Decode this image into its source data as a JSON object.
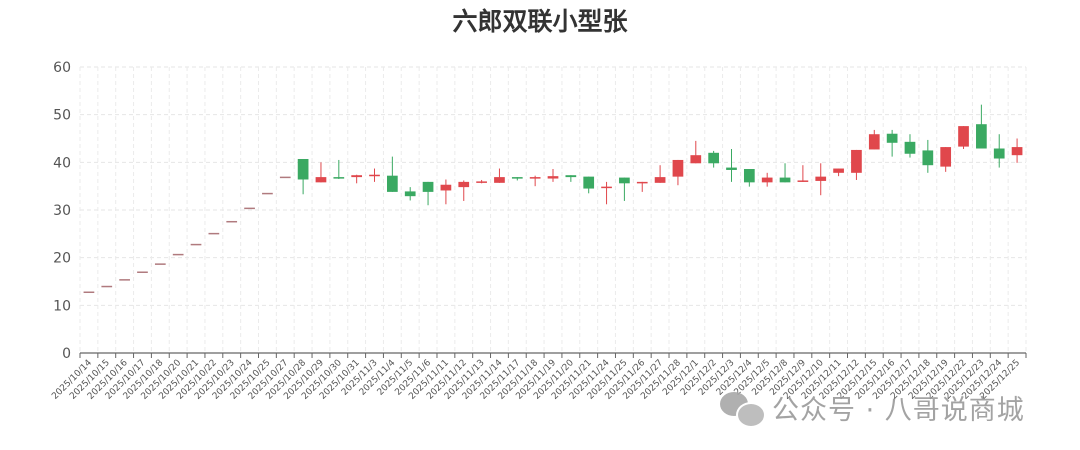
{
  "chart_data": {
    "type": "candlestick",
    "title": "六郎双联小型张",
    "ylim": [
      0,
      60
    ],
    "yticks": [
      0,
      10,
      20,
      30,
      40,
      50,
      60
    ],
    "grid": true,
    "colors": {
      "up": "#e0474c",
      "down": "#3aa962",
      "flat": "#b07a7e"
    },
    "ohlc_order": [
      "open",
      "close",
      "low",
      "high"
    ],
    "categories": [
      "2025/10/14",
      "2025/10/15",
      "2025/10/16",
      "2025/10/17",
      "2025/10/18",
      "2025/10/20",
      "2025/10/21",
      "2025/10/22",
      "2025/10/23",
      "2025/10/24",
      "2025/10/25",
      "2025/10/27",
      "2025/10/28",
      "2025/10/29",
      "2025/10/30",
      "2025/10/31",
      "2025/11/3",
      "2025/11/4",
      "2025/11/5",
      "2025/11/6",
      "2025/11/11",
      "2025/11/12",
      "2025/11/13",
      "2025/11/14",
      "2025/11/17",
      "2025/11/18",
      "2025/11/19",
      "2025/11/20",
      "2025/11/21",
      "2025/11/24",
      "2025/11/25",
      "2025/11/26",
      "2025/11/27",
      "2025/11/28",
      "2025/12/1",
      "2025/12/2",
      "2025/12/3",
      "2025/12/4",
      "2025/12/5",
      "2025/12/8",
      "2025/12/9",
      "2025/12/10",
      "2025/12/11",
      "2025/12/12",
      "2025/12/15",
      "2025/12/16",
      "2025/12/17",
      "2025/12/18",
      "2025/12/19",
      "2025/12/22",
      "2025/12/23",
      "2025/12/24",
      "2025/12/25"
    ],
    "values": [
      [
        12.9,
        12.9,
        12.9,
        12.9
      ],
      [
        14.1,
        14.1,
        14.1,
        14.1
      ],
      [
        15.5,
        15.5,
        15.5,
        15.5
      ],
      [
        17.1,
        17.1,
        17.1,
        17.1
      ],
      [
        18.8,
        18.8,
        18.8,
        18.8
      ],
      [
        20.8,
        20.8,
        20.8,
        20.8
      ],
      [
        22.9,
        22.9,
        22.9,
        22.9
      ],
      [
        25.2,
        25.2,
        25.2,
        25.2
      ],
      [
        27.7,
        27.7,
        27.7,
        27.7
      ],
      [
        30.5,
        30.5,
        30.5,
        30.5
      ],
      [
        33.6,
        33.6,
        33.6,
        33.6
      ],
      [
        37.0,
        37.0,
        37.0,
        37.0
      ],
      [
        40.7,
        36.4,
        33.3,
        40.7
      ],
      [
        35.8,
        36.9,
        35.8,
        40.0
      ],
      [
        36.9,
        36.7,
        36.5,
        40.5
      ],
      [
        36.9,
        37.3,
        35.6,
        37.4
      ],
      [
        37.2,
        37.4,
        35.9,
        38.7
      ],
      [
        37.2,
        33.8,
        33.8,
        41.2
      ],
      [
        33.9,
        32.9,
        32.0,
        34.8
      ],
      [
        35.9,
        33.8,
        31.0,
        35.9
      ],
      [
        34.1,
        35.3,
        31.2,
        36.4
      ],
      [
        34.8,
        35.9,
        31.9,
        36.2
      ],
      [
        35.9,
        36.0,
        35.6,
        36.3
      ],
      [
        35.7,
        36.9,
        35.7,
        38.7
      ],
      [
        36.9,
        36.7,
        36.2,
        36.9
      ],
      [
        36.8,
        36.9,
        35.0,
        37.2
      ],
      [
        36.6,
        37.1,
        35.9,
        38.6
      ],
      [
        37.3,
        36.9,
        35.9,
        37.3
      ],
      [
        37.0,
        34.5,
        33.5,
        37.0
      ],
      [
        34.8,
        34.9,
        31.2,
        35.9
      ],
      [
        36.8,
        35.6,
        31.9,
        36.8
      ],
      [
        35.8,
        35.9,
        33.8,
        35.9
      ],
      [
        35.7,
        36.9,
        35.7,
        39.4
      ],
      [
        37.0,
        40.5,
        35.2,
        40.5
      ],
      [
        39.8,
        41.5,
        39.8,
        44.5
      ],
      [
        42.0,
        39.8,
        38.9,
        42.4
      ],
      [
        38.9,
        38.4,
        35.9,
        42.8
      ],
      [
        38.6,
        35.8,
        34.9,
        38.6
      ],
      [
        35.8,
        36.8,
        34.9,
        37.8
      ],
      [
        36.8,
        35.8,
        35.8,
        39.8
      ],
      [
        35.9,
        36.2,
        35.9,
        39.4
      ],
      [
        36.1,
        37.0,
        33.1,
        39.8
      ],
      [
        37.8,
        38.7,
        37.1,
        38.7
      ],
      [
        37.8,
        42.6,
        36.3,
        42.6
      ],
      [
        42.7,
        45.9,
        42.7,
        46.8
      ],
      [
        46.0,
        44.1,
        41.2,
        46.8
      ],
      [
        44.3,
        41.8,
        41.0,
        45.9
      ],
      [
        42.5,
        39.4,
        37.8,
        44.7
      ],
      [
        39.1,
        43.2,
        38.0,
        43.2
      ],
      [
        43.3,
        47.6,
        42.8,
        47.6
      ],
      [
        48.0,
        42.9,
        42.9,
        52.1
      ],
      [
        42.9,
        40.8,
        38.9,
        45.9
      ],
      [
        41.5,
        43.2,
        39.9,
        45.0
      ]
    ]
  },
  "watermark": {
    "text": "公众号 · 八哥说商城",
    "icon": "wechat-icon"
  }
}
